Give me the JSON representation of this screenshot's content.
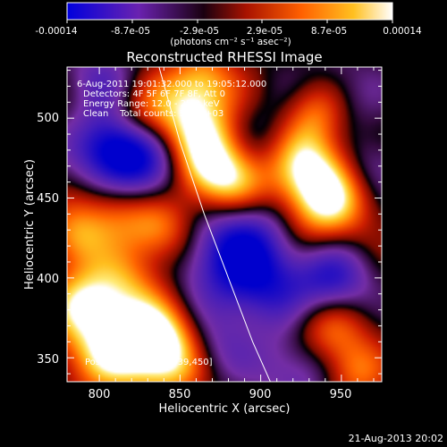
{
  "colorbar": {
    "tick_labels": [
      "-0.00014",
      "-8.7e-05",
      "-2.9e-05",
      "2.9e-05",
      "8.7e-05",
      "0.00014"
    ],
    "units_line": "(photons cm⁻² s⁻¹ asec⁻²)"
  },
  "chart_data": {
    "type": "heatmap",
    "title": "Reconstructed RHESSI Image",
    "xlabel": "Heliocentric X (arcsec)",
    "ylabel": "Heliocentric Y (arcsec)",
    "xlim": [
      780,
      975
    ],
    "ylim": [
      335,
      532
    ],
    "xticks": [
      800,
      850,
      900,
      950
    ],
    "yticks": [
      350,
      400,
      450,
      500
    ],
    "colorscale": [
      "#0000cc",
      "#5020b0",
      "#7a2aa0",
      "#000000",
      "#c81e00",
      "#ff6a00",
      "#ffc020",
      "#ffffff"
    ],
    "clim": [
      -0.00014,
      0.00014
    ],
    "annotations": [
      "6-Aug-2011 19:01:32.000 to 19:05:12.000",
      "Detectors: 4F 5F 6F 7F 8F, Att 0",
      "Energy Range: 12.0 - 25.0 keV",
      "Clean    Total counts: 5.36E+03"
    ],
    "peak_label": "Position of Peak = [939,450]",
    "peak": [
      939,
      450
    ],
    "limb_curve": [
      [
        837,
        532
      ],
      [
        850,
        485
      ],
      [
        865,
        440
      ],
      [
        880,
        400
      ],
      [
        895,
        360
      ],
      [
        906,
        335
      ]
    ],
    "blobs": [
      {
        "x": 825,
        "y": 470,
        "v": -1.0,
        "s": 22
      },
      {
        "x": 808,
        "y": 483,
        "v": -0.7,
        "s": 16
      },
      {
        "x": 880,
        "y": 415,
        "v": -0.8,
        "s": 22
      },
      {
        "x": 905,
        "y": 395,
        "v": -0.6,
        "s": 20
      },
      {
        "x": 945,
        "y": 398,
        "v": -0.75,
        "s": 16
      },
      {
        "x": 905,
        "y": 480,
        "v": -0.5,
        "s": 20
      },
      {
        "x": 925,
        "y": 345,
        "v": -0.6,
        "s": 18
      },
      {
        "x": 800,
        "y": 525,
        "v": -0.4,
        "s": 16
      },
      {
        "x": 950,
        "y": 515,
        "v": -0.3,
        "s": 18
      },
      {
        "x": 870,
        "y": 355,
        "v": -0.5,
        "s": 16
      },
      {
        "x": 895,
        "y": 440,
        "v": -0.45,
        "s": 18
      },
      {
        "x": 968,
        "y": 470,
        "v": -0.4,
        "s": 14
      },
      {
        "x": 855,
        "y": 500,
        "v": 0.95,
        "s": 20
      },
      {
        "x": 868,
        "y": 468,
        "v": 0.85,
        "s": 18
      },
      {
        "x": 888,
        "y": 458,
        "v": 0.75,
        "s": 18
      },
      {
        "x": 939,
        "y": 450,
        "v": 1.0,
        "s": 20
      },
      {
        "x": 925,
        "y": 475,
        "v": 0.8,
        "s": 18
      },
      {
        "x": 935,
        "y": 505,
        "v": 0.55,
        "s": 14
      },
      {
        "x": 810,
        "y": 445,
        "v": 0.7,
        "s": 16
      },
      {
        "x": 838,
        "y": 430,
        "v": 0.7,
        "s": 16
      },
      {
        "x": 790,
        "y": 385,
        "v": 0.7,
        "s": 16
      },
      {
        "x": 815,
        "y": 395,
        "v": 0.5,
        "s": 16
      },
      {
        "x": 805,
        "y": 355,
        "v": 0.85,
        "s": 20
      },
      {
        "x": 845,
        "y": 350,
        "v": 0.9,
        "s": 18
      },
      {
        "x": 832,
        "y": 365,
        "v": 0.6,
        "s": 16
      },
      {
        "x": 940,
        "y": 365,
        "v": 0.7,
        "s": 18
      },
      {
        "x": 958,
        "y": 340,
        "v": 0.5,
        "s": 14
      },
      {
        "x": 823,
        "y": 500,
        "v": 0.45,
        "s": 14
      },
      {
        "x": 785,
        "y": 425,
        "v": 0.6,
        "s": 14
      },
      {
        "x": 865,
        "y": 525,
        "v": 0.45,
        "s": 14
      }
    ]
  },
  "footer": {
    "timestamp": "21-Aug-2013 20:02"
  }
}
